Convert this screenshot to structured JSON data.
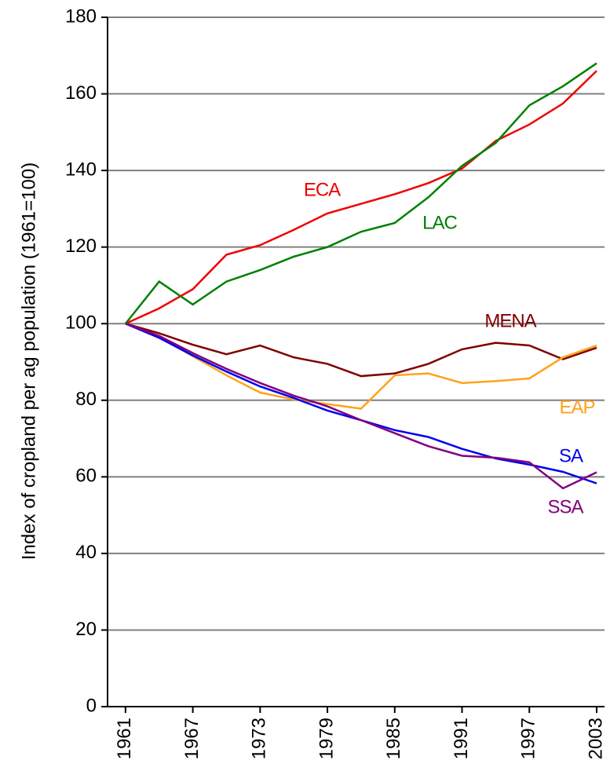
{
  "chart_data": {
    "type": "line",
    "y_label": "Index of cropland per ag population (1961=100)",
    "x": [
      1961,
      1964,
      1967,
      1970,
      1973,
      1976,
      1979,
      1982,
      1985,
      1988,
      1991,
      1994,
      1997,
      2000,
      2003
    ],
    "xlim": [
      1959.4,
      2003.7
    ],
    "xticks": [
      1961,
      1967,
      1973,
      1979,
      1985,
      1991,
      1997,
      2003
    ],
    "ylim": [
      0,
      180
    ],
    "yticks": [
      0,
      20,
      40,
      60,
      80,
      100,
      120,
      140,
      160,
      180
    ],
    "grid": true,
    "series": [
      {
        "name": "ECA",
        "color": "#ee0000",
        "values": [
          100,
          104,
          109,
          118,
          120.5,
          124.5,
          128.8,
          131.3,
          133.8,
          136.7,
          140.5,
          147.7,
          152,
          157.5,
          166
        ]
      },
      {
        "name": "LAC",
        "color": "#008000",
        "values": [
          100,
          111,
          105,
          111,
          114,
          117.5,
          120,
          124,
          126.3,
          133,
          141.2,
          147.2,
          157,
          162,
          168
        ]
      },
      {
        "name": "MENA",
        "color": "#800000",
        "values": [
          100,
          97.5,
          94.5,
          92,
          94.3,
          91.2,
          89.5,
          86.3,
          87,
          89.5,
          93.3,
          95,
          94.3,
          90.7,
          93.7
        ]
      },
      {
        "name": "EAP",
        "color": "#ffa31a",
        "values": [
          100,
          96.5,
          91.5,
          86.5,
          82,
          80.2,
          79,
          77.8,
          86.5,
          87,
          84.5,
          85,
          85.7,
          91.2,
          94.3
        ]
      },
      {
        "name": "SA",
        "color": "#0000ee",
        "values": [
          100,
          96.3,
          91.7,
          87.5,
          83.6,
          80.6,
          77.3,
          74.8,
          72.2,
          70.4,
          67.3,
          64.8,
          63.2,
          61.3,
          58.3
        ]
      },
      {
        "name": "SSA",
        "color": "#800080",
        "values": [
          100,
          96.8,
          92.3,
          88.2,
          84.5,
          81.2,
          78.4,
          74.8,
          71.4,
          68,
          65.5,
          65,
          63.8,
          57,
          61.2
        ]
      }
    ]
  }
}
